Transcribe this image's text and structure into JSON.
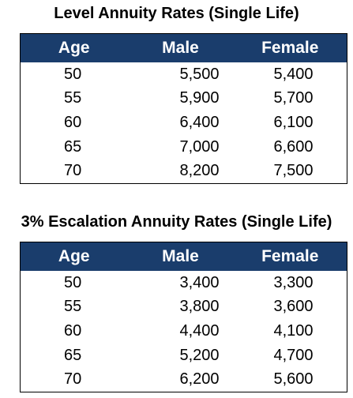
{
  "tables": [
    {
      "title": "Level Annuity Rates (Single Life)",
      "headers": [
        "Age",
        "Male",
        "Female"
      ],
      "rows": [
        [
          "50",
          "5,500",
          "5,400"
        ],
        [
          "55",
          "5,900",
          "5,700"
        ],
        [
          "60",
          "6,400",
          "6,100"
        ],
        [
          "65",
          "7,000",
          "6,600"
        ],
        [
          "70",
          "8,200",
          "7,500"
        ]
      ]
    },
    {
      "title": "3% Escalation Annuity Rates (Single Life)",
      "headers": [
        "Age",
        "Male",
        "Female"
      ],
      "rows": [
        [
          "50",
          "3,400",
          "3,300"
        ],
        [
          "55",
          "3,800",
          "3,600"
        ],
        [
          "60",
          "4,400",
          "4,100"
        ],
        [
          "65",
          "5,200",
          "4,700"
        ],
        [
          "70",
          "6,200",
          "5,600"
        ]
      ]
    }
  ],
  "colors": {
    "header_background": "#1a3d6c",
    "header_text": "#ffffff"
  }
}
